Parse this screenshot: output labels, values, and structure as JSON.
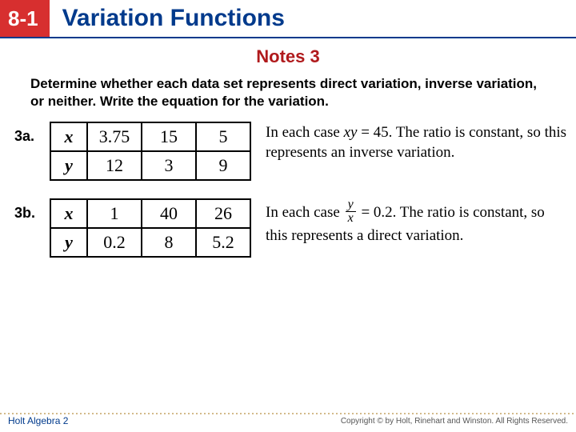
{
  "header": {
    "chapter": "8-1",
    "title": "Variation Functions",
    "chapter_bg": "#d72f2f",
    "title_color": "#003a8c"
  },
  "notes_title": "Notes 3",
  "instructions": "Determine whether each data set represents direct variation, inverse variation, or neither.  Write the equation for the variation.",
  "problems": {
    "a": {
      "label": "3a.",
      "row_headers": [
        "x",
        "y"
      ],
      "data": [
        [
          "3.75",
          "15",
          "5"
        ],
        [
          "12",
          "3",
          "9"
        ]
      ],
      "explanation_parts": {
        "pre": "In each case ",
        "eq_lhs_ital": "xy",
        "eq_rest": " = 45. The ratio is constant, so this represents an inverse variation."
      }
    },
    "b": {
      "label": "3b.",
      "row_headers": [
        "x",
        "y"
      ],
      "data": [
        [
          "1",
          "40",
          "26"
        ],
        [
          "0.2",
          "8",
          "5.2"
        ]
      ],
      "explanation_parts": {
        "pre": "In each case ",
        "frac_num": "y",
        "frac_den": "x",
        "eq_rest": " = 0.2. The ratio is constant, so this represents a direct variation."
      }
    }
  },
  "footer": {
    "left": "Holt Algebra 2",
    "right": "Copyright © by Holt, Rinehart and Winston. All Rights Reserved."
  }
}
